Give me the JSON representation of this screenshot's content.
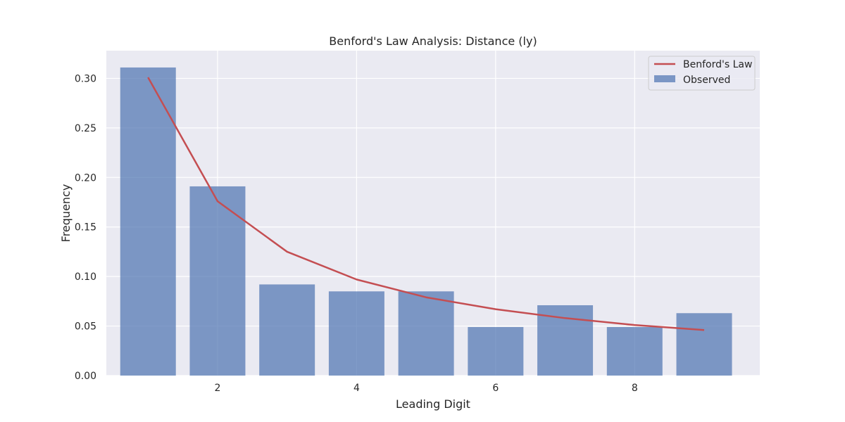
{
  "chart_data": {
    "type": "bar",
    "title": "Benford's Law Analysis: Distance (ly)",
    "xlabel": "Leading Digit",
    "ylabel": "Frequency",
    "x": [
      1,
      2,
      3,
      4,
      5,
      6,
      7,
      8,
      9
    ],
    "xlim": [
      0.4,
      9.8
    ],
    "ylim": [
      0,
      0.328
    ],
    "xticks": [
      2,
      4,
      6,
      8
    ],
    "yticks": [
      0.0,
      0.05,
      0.1,
      0.15,
      0.2,
      0.25,
      0.3
    ],
    "ytick_labels": [
      "0.00",
      "0.05",
      "0.10",
      "0.15",
      "0.20",
      "0.25",
      "0.30"
    ],
    "grid": true,
    "legend_position": "top-right",
    "series": [
      {
        "name": "Observed",
        "kind": "bar",
        "color": "#4c72b0",
        "values": [
          0.311,
          0.191,
          0.092,
          0.085,
          0.085,
          0.049,
          0.071,
          0.049,
          0.063
        ]
      },
      {
        "name": "Benford's Law",
        "kind": "line",
        "color": "#c44e52",
        "values": [
          0.301,
          0.176,
          0.125,
          0.097,
          0.079,
          0.067,
          0.058,
          0.051,
          0.046
        ]
      }
    ],
    "legend_order": [
      "Benford's Law",
      "Observed"
    ],
    "background": "#eaeaf2",
    "grid_color": "#ffffff"
  }
}
